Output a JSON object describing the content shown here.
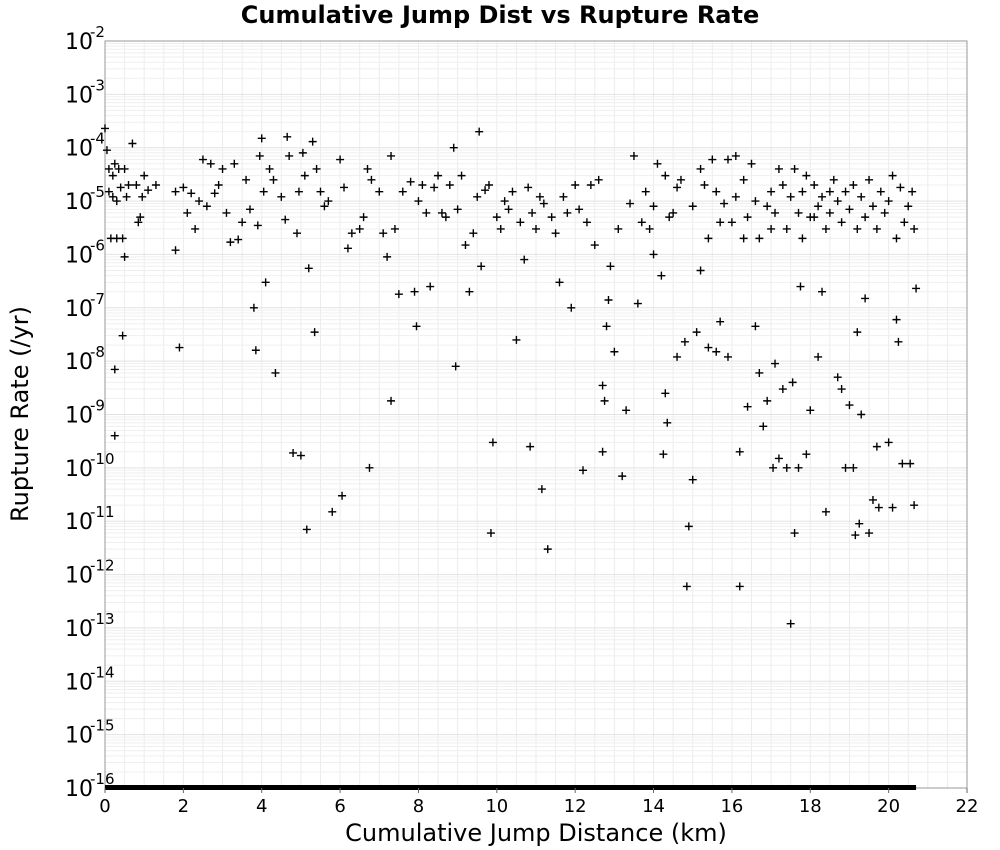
{
  "chart_data": {
    "type": "scatter",
    "title": "Cumulative Jump Dist vs Rupture Rate",
    "xlabel": "Cumulative Jump Distance (km)",
    "ylabel": "Rupture Rate (/yr)",
    "xlim": [
      0,
      22
    ],
    "ylim": [
      1e-16,
      0.01
    ],
    "yscale": "log",
    "grid": true,
    "xticks": [
      0,
      2,
      4,
      6,
      8,
      10,
      12,
      14,
      16,
      18,
      20,
      22
    ],
    "ytick_exponents": [
      -2,
      -3,
      -4,
      -5,
      -6,
      -7,
      -8,
      -9,
      -10,
      -11,
      -12,
      -13,
      -14,
      -15,
      -16
    ],
    "marker": "+",
    "color": "#000000",
    "zero_rate_band": {
      "x_min": 0,
      "x_max": 20.7,
      "y": 1e-16
    },
    "points": [
      [
        0.0,
        0.00023
      ],
      [
        0.05,
        9e-05
      ],
      [
        0.1,
        4e-05
      ],
      [
        0.1,
        1.5e-05
      ],
      [
        0.15,
        2e-06
      ],
      [
        0.2,
        3e-05
      ],
      [
        0.2,
        1.2e-05
      ],
      [
        0.25,
        5e-05
      ],
      [
        0.3,
        1e-05
      ],
      [
        0.3,
        2e-06
      ],
      [
        0.35,
        4e-05
      ],
      [
        0.4,
        1.8e-05
      ],
      [
        0.45,
        2e-06
      ],
      [
        0.5,
        9e-07
      ],
      [
        0.5,
        4e-05
      ],
      [
        0.55,
        1.2e-05
      ],
      [
        0.6,
        2e-05
      ],
      [
        0.7,
        0.00012
      ],
      [
        0.8,
        2e-05
      ],
      [
        0.85,
        4e-06
      ],
      [
        0.9,
        5e-06
      ],
      [
        0.95,
        1.2e-05
      ],
      [
        1.0,
        3e-05
      ],
      [
        1.1,
        1.6e-05
      ],
      [
        1.3,
        2e-05
      ],
      [
        0.25,
        7e-09
      ],
      [
        0.25,
        4e-10
      ],
      [
        0.45,
        3e-08
      ],
      [
        1.8,
        1.2e-06
      ],
      [
        1.8,
        1.5e-05
      ],
      [
        1.9,
        1.8e-08
      ],
      [
        2.0,
        1.8e-05
      ],
      [
        2.1,
        6e-06
      ],
      [
        2.2,
        1.4e-05
      ],
      [
        2.3,
        3e-06
      ],
      [
        2.4,
        1e-05
      ],
      [
        2.5,
        6e-05
      ],
      [
        2.6,
        8e-06
      ],
      [
        2.7,
        5e-05
      ],
      [
        2.8,
        1.4e-05
      ],
      [
        2.9,
        2e-05
      ],
      [
        3.0,
        4e-05
      ],
      [
        3.1,
        6e-06
      ],
      [
        3.2,
        1.7e-06
      ],
      [
        3.3,
        5e-05
      ],
      [
        3.4,
        1.9e-06
      ],
      [
        3.5,
        4e-06
      ],
      [
        3.6,
        2.5e-05
      ],
      [
        3.7,
        7e-06
      ],
      [
        3.8,
        1e-07
      ],
      [
        3.85,
        1.6e-08
      ],
      [
        3.9,
        3.5e-06
      ],
      [
        3.95,
        7e-05
      ],
      [
        4.0,
        0.00015
      ],
      [
        4.05,
        1.5e-05
      ],
      [
        4.1,
        3e-07
      ],
      [
        4.2,
        4e-05
      ],
      [
        4.3,
        2.5e-05
      ],
      [
        4.35,
        6e-09
      ],
      [
        4.5,
        1.2e-05
      ],
      [
        4.6,
        4.5e-06
      ],
      [
        4.65,
        0.00016
      ],
      [
        4.7,
        7e-05
      ],
      [
        4.8,
        1.9e-10
      ],
      [
        4.9,
        2.5e-06
      ],
      [
        4.95,
        1.5e-05
      ],
      [
        5.0,
        1.7e-10
      ],
      [
        5.05,
        8e-05
      ],
      [
        5.1,
        3e-05
      ],
      [
        5.15,
        7e-12
      ],
      [
        5.2,
        5.5e-07
      ],
      [
        5.3,
        0.00013
      ],
      [
        5.35,
        3.5e-08
      ],
      [
        5.4,
        4e-05
      ],
      [
        5.5,
        1.5e-05
      ],
      [
        5.6,
        8e-06
      ],
      [
        5.7,
        1e-05
      ],
      [
        5.8,
        1.5e-11
      ],
      [
        6.0,
        6e-05
      ],
      [
        6.05,
        3e-11
      ],
      [
        6.1,
        1.8e-05
      ],
      [
        6.2,
        1.3e-06
      ],
      [
        6.3,
        2.5e-06
      ],
      [
        6.5,
        3e-06
      ],
      [
        6.6,
        5e-06
      ],
      [
        6.7,
        4e-05
      ],
      [
        6.75,
        1e-10
      ],
      [
        6.8,
        2.5e-05
      ],
      [
        7.0,
        1.5e-05
      ],
      [
        7.1,
        2.5e-06
      ],
      [
        7.2,
        9e-07
      ],
      [
        7.3,
        1.8e-09
      ],
      [
        7.3,
        7e-05
      ],
      [
        7.4,
        3e-06
      ],
      [
        7.5,
        1.8e-07
      ],
      [
        7.6,
        1.5e-05
      ],
      [
        7.8,
        2.3e-05
      ],
      [
        7.9,
        2e-07
      ],
      [
        7.95,
        4.5e-08
      ],
      [
        8.0,
        1e-05
      ],
      [
        8.1,
        2e-05
      ],
      [
        8.2,
        6e-06
      ],
      [
        8.3,
        2.5e-07
      ],
      [
        8.4,
        1.8e-05
      ],
      [
        8.5,
        3e-05
      ],
      [
        8.6,
        6e-06
      ],
      [
        8.7,
        5e-06
      ],
      [
        8.8,
        2e-05
      ],
      [
        8.9,
        0.0001
      ],
      [
        8.95,
        8e-09
      ],
      [
        9.0,
        7e-06
      ],
      [
        9.1,
        3e-05
      ],
      [
        9.2,
        1.5e-06
      ],
      [
        9.3,
        2e-07
      ],
      [
        9.4,
        2.5e-06
      ],
      [
        9.5,
        1.2e-05
      ],
      [
        9.55,
        0.0002
      ],
      [
        9.6,
        6e-07
      ],
      [
        9.7,
        1.6e-05
      ],
      [
        9.8,
        2e-05
      ],
      [
        9.85,
        6e-12
      ],
      [
        9.9,
        3e-10
      ],
      [
        10.0,
        5e-06
      ],
      [
        10.1,
        3e-06
      ],
      [
        10.2,
        1e-05
      ],
      [
        10.3,
        7e-06
      ],
      [
        10.4,
        1.5e-05
      ],
      [
        10.5,
        2.5e-08
      ],
      [
        10.6,
        4e-06
      ],
      [
        10.7,
        8e-07
      ],
      [
        10.8,
        1.8e-05
      ],
      [
        10.85,
        2.5e-10
      ],
      [
        10.9,
        6e-06
      ],
      [
        11.0,
        3e-06
      ],
      [
        11.1,
        1.2e-05
      ],
      [
        11.15,
        4e-11
      ],
      [
        11.2,
        9e-06
      ],
      [
        11.3,
        3e-12
      ],
      [
        11.4,
        5e-06
      ],
      [
        11.5,
        2.5e-06
      ],
      [
        11.6,
        3e-07
      ],
      [
        11.7,
        1.2e-05
      ],
      [
        11.8,
        6e-06
      ],
      [
        11.9,
        1e-07
      ],
      [
        12.0,
        2e-05
      ],
      [
        12.1,
        7e-06
      ],
      [
        12.2,
        9e-11
      ],
      [
        12.3,
        4e-06
      ],
      [
        12.4,
        2e-05
      ],
      [
        12.5,
        1.5e-06
      ],
      [
        12.6,
        2.5e-05
      ],
      [
        12.7,
        3.5e-09
      ],
      [
        12.7,
        2e-10
      ],
      [
        12.75,
        1.8e-09
      ],
      [
        12.8,
        4.5e-08
      ],
      [
        12.85,
        1.4e-07
      ],
      [
        12.9,
        6e-07
      ],
      [
        13.0,
        1.5e-08
      ],
      [
        13.1,
        3e-06
      ],
      [
        13.2,
        7e-11
      ],
      [
        13.3,
        1.2e-09
      ],
      [
        13.4,
        9e-06
      ],
      [
        13.5,
        7e-05
      ],
      [
        13.6,
        1.2e-07
      ],
      [
        13.7,
        4e-06
      ],
      [
        13.8,
        1.5e-05
      ],
      [
        14.0,
        1e-06
      ],
      [
        14.1,
        5e-05
      ],
      [
        14.2,
        4e-07
      ],
      [
        14.25,
        1.8e-10
      ],
      [
        14.3,
        2.5e-09
      ],
      [
        14.35,
        7e-10
      ],
      [
        14.5,
        6e-06
      ],
      [
        14.6,
        1.2e-08
      ],
      [
        14.7,
        2.5e-05
      ],
      [
        14.8,
        2.3e-08
      ],
      [
        14.85,
        6e-13
      ],
      [
        14.9,
        8e-12
      ],
      [
        15.0,
        6e-11
      ],
      [
        15.1,
        3.5e-08
      ],
      [
        15.2,
        5e-07
      ],
      [
        15.3,
        2e-05
      ],
      [
        15.4,
        1.8e-08
      ],
      [
        15.5,
        6e-05
      ],
      [
        15.6,
        1.5e-08
      ],
      [
        15.7,
        5.5e-08
      ],
      [
        15.8,
        9e-06
      ],
      [
        15.9,
        1.2e-08
      ],
      [
        16.0,
        4e-06
      ],
      [
        16.1,
        7e-05
      ],
      [
        16.2,
        2e-10
      ],
      [
        16.2,
        6e-13
      ],
      [
        16.3,
        2e-06
      ],
      [
        16.4,
        1.4e-09
      ],
      [
        16.5,
        5e-05
      ],
      [
        16.6,
        4.5e-08
      ],
      [
        16.7,
        6e-09
      ],
      [
        16.8,
        6e-10
      ],
      [
        16.9,
        1.8e-09
      ],
      [
        17.0,
        3e-06
      ],
      [
        17.05,
        1e-10
      ],
      [
        17.1,
        9e-09
      ],
      [
        17.2,
        1.5e-10
      ],
      [
        17.3,
        3e-09
      ],
      [
        17.4,
        1e-10
      ],
      [
        17.5,
        1.2e-13
      ],
      [
        17.55,
        4e-09
      ],
      [
        17.6,
        6e-12
      ],
      [
        17.7,
        1e-10
      ],
      [
        17.75,
        2.5e-07
      ],
      [
        17.8,
        2e-06
      ],
      [
        17.9,
        1.8e-10
      ],
      [
        18.0,
        1.2e-09
      ],
      [
        18.1,
        5e-06
      ],
      [
        18.2,
        1.2e-08
      ],
      [
        18.3,
        2e-07
      ],
      [
        18.4,
        1.5e-11
      ],
      [
        18.5,
        1.5e-05
      ],
      [
        18.7,
        5e-09
      ],
      [
        18.8,
        3e-09
      ],
      [
        18.9,
        1e-10
      ],
      [
        19.0,
        1.5e-09
      ],
      [
        19.1,
        1e-10
      ],
      [
        19.15,
        5.5e-12
      ],
      [
        19.2,
        3.5e-08
      ],
      [
        19.25,
        9e-12
      ],
      [
        19.3,
        1e-09
      ],
      [
        19.4,
        1.5e-07
      ],
      [
        19.5,
        6e-12
      ],
      [
        19.6,
        2.5e-11
      ],
      [
        19.7,
        2.5e-10
      ],
      [
        19.75,
        1.8e-11
      ],
      [
        20.0,
        3e-10
      ],
      [
        20.1,
        1.8e-11
      ],
      [
        20.2,
        6e-08
      ],
      [
        20.25,
        2.3e-08
      ],
      [
        20.35,
        1.2e-10
      ],
      [
        20.55,
        1.2e-10
      ],
      [
        20.65,
        2e-11
      ],
      [
        20.7,
        2.3e-07
      ],
      [
        13.9,
        3e-06
      ],
      [
        14.0,
        8e-06
      ],
      [
        14.3,
        3e-05
      ],
      [
        14.4,
        5e-06
      ],
      [
        14.6,
        1.8e-05
      ],
      [
        15.0,
        8e-06
      ],
      [
        15.2,
        4e-05
      ],
      [
        15.4,
        2e-06
      ],
      [
        15.6,
        1.5e-05
      ],
      [
        15.7,
        4e-06
      ],
      [
        15.9,
        6e-05
      ],
      [
        16.1,
        1.2e-05
      ],
      [
        16.3,
        2.5e-05
      ],
      [
        16.4,
        5e-06
      ],
      [
        16.6,
        1e-05
      ],
      [
        16.7,
        2e-06
      ],
      [
        16.9,
        8e-06
      ],
      [
        17.0,
        1.5e-05
      ],
      [
        17.1,
        6e-06
      ],
      [
        17.2,
        4e-05
      ],
      [
        17.3,
        2e-05
      ],
      [
        17.4,
        3e-06
      ],
      [
        17.5,
        1.2e-05
      ],
      [
        17.6,
        4e-05
      ],
      [
        17.7,
        6e-06
      ],
      [
        17.8,
        1.5e-05
      ],
      [
        17.9,
        3e-05
      ],
      [
        18.0,
        5e-06
      ],
      [
        18.1,
        2e-05
      ],
      [
        18.2,
        8e-06
      ],
      [
        18.3,
        1.2e-05
      ],
      [
        18.4,
        3e-06
      ],
      [
        18.5,
        6e-06
      ],
      [
        18.6,
        2.5e-05
      ],
      [
        18.7,
        1e-05
      ],
      [
        18.8,
        4e-06
      ],
      [
        18.9,
        1.5e-05
      ],
      [
        19.0,
        7e-06
      ],
      [
        19.1,
        2e-05
      ],
      [
        19.2,
        3e-06
      ],
      [
        19.3,
        1.2e-05
      ],
      [
        19.4,
        5e-06
      ],
      [
        19.5,
        2.5e-05
      ],
      [
        19.6,
        8e-06
      ],
      [
        19.7,
        3e-06
      ],
      [
        19.8,
        1.5e-05
      ],
      [
        19.9,
        6e-06
      ],
      [
        20.0,
        1e-05
      ],
      [
        20.1,
        3e-05
      ],
      [
        20.2,
        2e-06
      ],
      [
        20.3,
        1.8e-05
      ],
      [
        20.4,
        4e-06
      ],
      [
        20.5,
        8e-06
      ],
      [
        20.6,
        1.5e-05
      ],
      [
        20.65,
        3e-06
      ]
    ]
  }
}
